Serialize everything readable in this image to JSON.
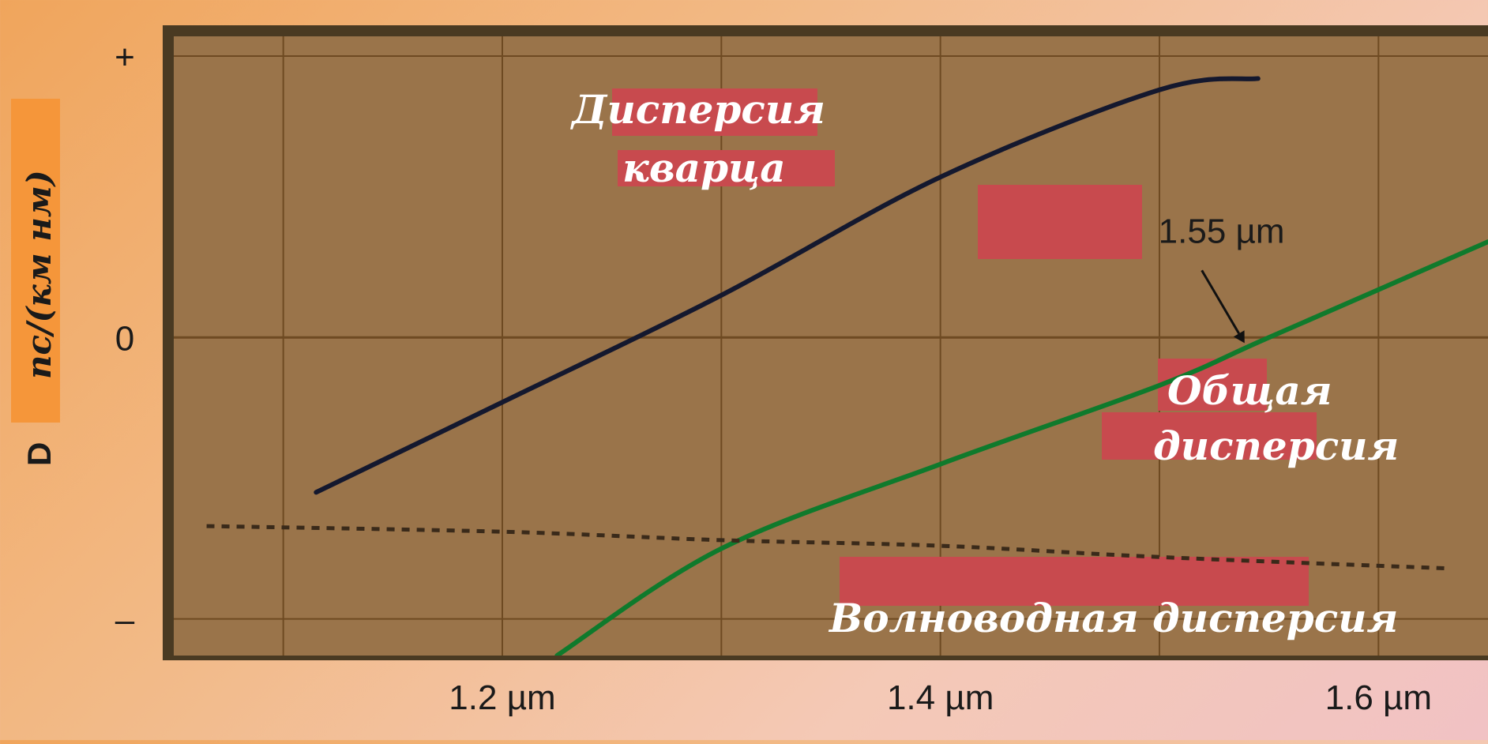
{
  "chart_data": {
    "type": "line",
    "title": "",
    "xlabel": "",
    "ylabel": {
      "symbol": "D",
      "units": "пс/(км нм)"
    },
    "x_ticks": [
      "1.2 µm",
      "1.4 µm",
      "1.6 µm"
    ],
    "x_tick_values": [
      1.2,
      1.4,
      1.6
    ],
    "y_ticks": [
      "+",
      "0",
      "–"
    ],
    "y_tick_values": [
      1,
      0,
      -1
    ],
    "xlim": [
      1.05,
      1.65
    ],
    "ylim": [
      -1.13,
      1.07
    ],
    "grid": true,
    "series": [
      {
        "name": "Дисперсия кварца",
        "line_style": "solid",
        "color": "#14182e",
        "x": [
          1.115,
          1.2,
          1.3,
          1.4,
          1.5,
          1.545
        ],
        "y": [
          -0.55,
          -0.23,
          0.15,
          0.57,
          0.88,
          0.92
        ]
      },
      {
        "name": "Общая дисперсия",
        "line_style": "solid",
        "color": "#0f7a2c",
        "x": [
          1.225,
          1.3,
          1.4,
          1.5,
          1.55,
          1.65
        ],
        "y": [
          -1.13,
          -0.75,
          -0.45,
          -0.17,
          0.0,
          0.34
        ]
      },
      {
        "name": "Волноводная дисперсия",
        "line_style": "dashed",
        "color": "#3a2a1a",
        "x": [
          1.065,
          1.2,
          1.3,
          1.4,
          1.5,
          1.63
        ],
        "y": [
          -0.67,
          -0.69,
          -0.72,
          -0.74,
          -0.78,
          -0.82
        ]
      }
    ],
    "annotations": [
      {
        "text": "Дисперсия",
        "group": "quartz"
      },
      {
        "text": "кварца",
        "group": "quartz"
      },
      {
        "text": "Общая",
        "group": "total"
      },
      {
        "text": "дисперсия",
        "group": "total"
      },
      {
        "text": "Волноводная дисперсия",
        "group": "waveguide"
      }
    ],
    "marker": {
      "label": "1.55 µm",
      "x": 1.55,
      "y": 0.0
    },
    "colors": {
      "plot_background": "#9a744a",
      "grid": "#6e4a22",
      "label_patch": "#c84a4e",
      "ylabel_highlight": "#f5963a"
    }
  }
}
